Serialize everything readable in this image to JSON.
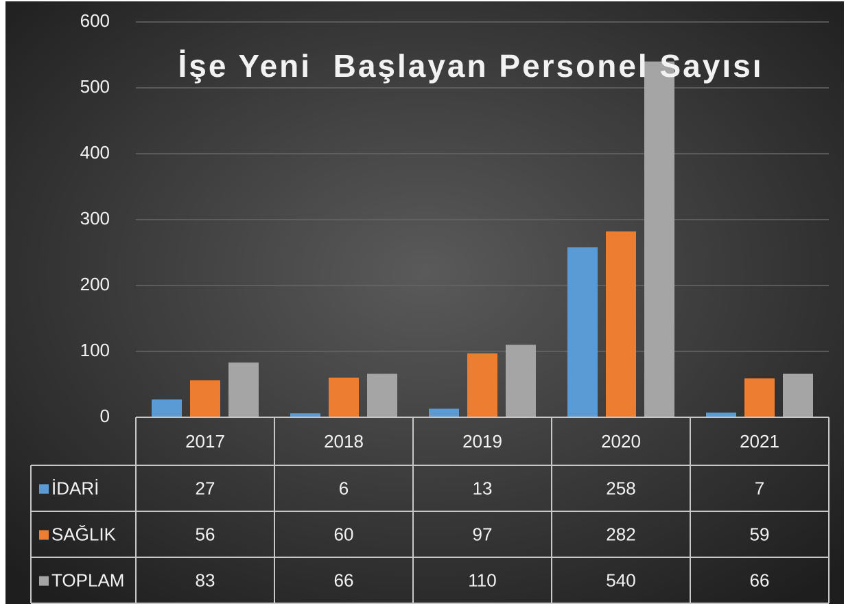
{
  "chart_data": {
    "type": "bar",
    "title": "İşe Yeni  Başlayan Personel Sayısı",
    "categories": [
      "2017",
      "2018",
      "2019",
      "2020",
      "2021"
    ],
    "series": [
      {
        "name": "İDARİ",
        "color": "#5b9bd5",
        "values": [
          27,
          6,
          13,
          258,
          7
        ]
      },
      {
        "name": "SAĞLIK",
        "color": "#ed7d31",
        "values": [
          56,
          60,
          97,
          282,
          59
        ]
      },
      {
        "name": "TOPLAM",
        "color": "#a5a5a5",
        "values": [
          83,
          66,
          110,
          540,
          66
        ]
      }
    ],
    "ylim": [
      0,
      600
    ],
    "yticks": [
      0,
      100,
      200,
      300,
      400,
      500,
      600
    ],
    "grid": true,
    "data_table": true
  }
}
